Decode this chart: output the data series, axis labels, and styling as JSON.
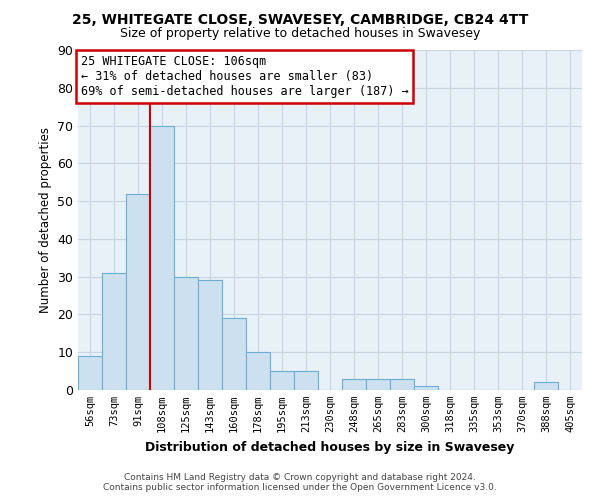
{
  "title": "25, WHITEGATE CLOSE, SWAVESEY, CAMBRIDGE, CB24 4TT",
  "subtitle": "Size of property relative to detached houses in Swavesey",
  "xlabel": "Distribution of detached houses by size in Swavesey",
  "ylabel": "Number of detached properties",
  "bar_labels": [
    "56sqm",
    "73sqm",
    "91sqm",
    "108sqm",
    "125sqm",
    "143sqm",
    "160sqm",
    "178sqm",
    "195sqm",
    "213sqm",
    "230sqm",
    "248sqm",
    "265sqm",
    "283sqm",
    "300sqm",
    "318sqm",
    "335sqm",
    "353sqm",
    "370sqm",
    "388sqm",
    "405sqm"
  ],
  "bar_values": [
    9,
    31,
    52,
    70,
    30,
    29,
    19,
    10,
    5,
    5,
    0,
    3,
    3,
    3,
    1,
    0,
    0,
    0,
    0,
    2,
    0
  ],
  "bar_color": "#cce0f0",
  "bar_edge_color": "#6aafd6",
  "grid_color": "#c8d4e0",
  "annotation_text_lines": [
    "25 WHITEGATE CLOSE: 106sqm",
    "← 31% of detached houses are smaller (83)",
    "69% of semi-detached houses are larger (187) →"
  ],
  "annotation_box_color": "#ffffff",
  "annotation_border_color": "#cc0000",
  "vline_color": "#cc0000",
  "vline_x_index": 3,
  "ylim": [
    0,
    90
  ],
  "yticks": [
    0,
    10,
    20,
    30,
    40,
    50,
    60,
    70,
    80,
    90
  ],
  "footer_line1": "Contains HM Land Registry data © Crown copyright and database right 2024.",
  "footer_line2": "Contains public sector information licensed under the Open Government Licence v3.0.",
  "background_color": "#ffffff",
  "plot_bg_color": "#e8f0f8"
}
